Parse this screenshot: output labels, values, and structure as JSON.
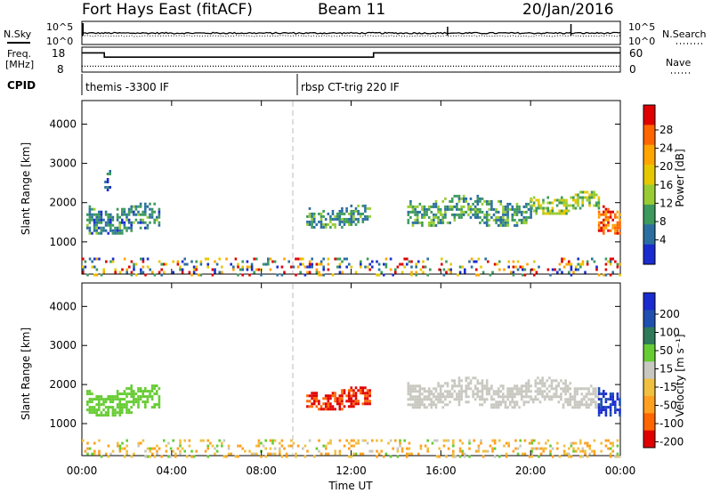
{
  "header": {
    "site": "Fort Hays East (fitACF)",
    "beam": "Beam 11",
    "date": "20/Jan/2016"
  },
  "top_panel": {
    "left_label": "N.Sky",
    "right_label": "N.Search",
    "left_ticks": [
      "10^5",
      "10^0"
    ],
    "right_ticks": [
      "10^5",
      "10^0"
    ]
  },
  "freq_panel": {
    "left_label_1": "Freq.",
    "left_label_2": "[MHz]",
    "right_label": "Nave",
    "left_ticks": [
      "18",
      "8"
    ],
    "right_ticks": [
      "60",
      "0"
    ],
    "freq_steps": [
      [
        0.0,
        17
      ],
      [
        1.0,
        15
      ],
      [
        9.6,
        15
      ],
      [
        13.0,
        17
      ],
      [
        24.0,
        17
      ]
    ],
    "nave_steps": [
      [
        0.0,
        14
      ],
      [
        24.0,
        14
      ]
    ]
  },
  "cpid": {
    "label": "CPID",
    "segments": [
      {
        "start_hour": 0.0,
        "text": "themis -3300 IF"
      },
      {
        "start_hour": 9.6,
        "text": "rbsp CT-trig 220 IF"
      }
    ]
  },
  "power_panel": {
    "ylabel": "Slant Range [km]",
    "colorbar_label": "Power [dB]",
    "colorbar_ticks": [
      "28",
      "24",
      "20",
      "16",
      "12",
      "8",
      "4"
    ],
    "colors": [
      "#e00000",
      "#ff6600",
      "#ffa500",
      "#e6c800",
      "#99cc33",
      "#3d9a5c",
      "#2a6fa0",
      "#1a2cd0"
    ]
  },
  "velocity_panel": {
    "ylabel": "Slant Range [km]",
    "colorbar_label": "Velocity [m s⁻¹]",
    "colorbar_ticks": [
      "200",
      "100",
      "50",
      "15",
      "-15",
      "-50",
      "-100",
      "-200"
    ],
    "colors": [
      "#1a2cd0",
      "#1f4fb0",
      "#2f7a5a",
      "#66cc33",
      "#c8c8c0",
      "#f0c040",
      "#ffa020",
      "#ff6600",
      "#e00000"
    ]
  },
  "axes": {
    "xlabel": "Time UT",
    "x_ticks": [
      "00:00",
      "04:00",
      "08:00",
      "12:00",
      "16:00",
      "20:00",
      "00:00"
    ],
    "y_ticks": [
      "4000",
      "3000",
      "2000",
      "1000"
    ]
  },
  "chart_data": {
    "type": "heatmap",
    "title": "Fort Hays East (fitACF)",
    "subtitle": "Beam 11 — 20/Jan/2016",
    "xlabel": "Time UT",
    "ylabel": "Slant Range [km]",
    "xlim_hours": [
      0,
      24
    ],
    "ylim_km": [
      180,
      4600
    ],
    "panels": [
      {
        "name": "Power",
        "colorbar": "Power [dB]",
        "clim": [
          0,
          32
        ],
        "regions": [
          {
            "t": [
              0.2,
              3.5
            ],
            "r": [
              1200,
              2000
            ],
            "value": 10
          },
          {
            "t": [
              1.0,
              1.3
            ],
            "r": [
              2300,
              2900
            ],
            "value": 8
          },
          {
            "t": [
              10.0,
              12.8
            ],
            "r": [
              1350,
              1950
            ],
            "value": 11
          },
          {
            "t": [
              14.5,
              20.0
            ],
            "r": [
              1400,
              2200
            ],
            "value": 12
          },
          {
            "t": [
              20.0,
              23.0
            ],
            "r": [
              1700,
              2300
            ],
            "value": 16
          },
          {
            "t": [
              23.0,
              24.0
            ],
            "r": [
              1200,
              2000
            ],
            "value": 28
          },
          {
            "t": [
              0.0,
              24.0
            ],
            "r": [
              180,
              600
            ],
            "value": 6
          }
        ]
      },
      {
        "name": "Velocity",
        "colorbar": "Velocity [m s⁻¹]",
        "clim": [
          -200,
          200
        ],
        "regions": [
          {
            "t": [
              0.2,
              3.5
            ],
            "r": [
              1200,
              2000
            ],
            "value": 30
          },
          {
            "t": [
              10.0,
              12.8
            ],
            "r": [
              1350,
              1950
            ],
            "value": -180
          },
          {
            "t": [
              14.5,
              23.0
            ],
            "r": [
              1400,
              2200
            ],
            "value": 0
          },
          {
            "t": [
              23.0,
              24.0
            ],
            "r": [
              1200,
              2000
            ],
            "value": 150
          },
          {
            "t": [
              0.0,
              24.0
            ],
            "r": [
              180,
              600
            ],
            "value": -40
          }
        ]
      }
    ]
  }
}
